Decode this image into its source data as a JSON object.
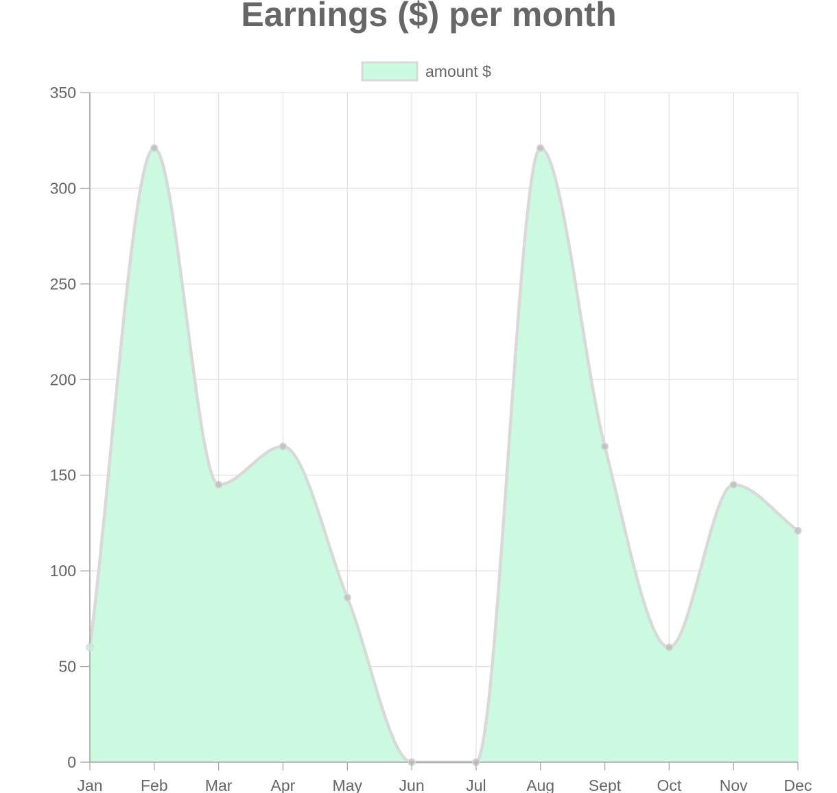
{
  "chart_data": {
    "type": "area",
    "title": "Earnings ($) per month",
    "xlabel": "",
    "ylabel": "",
    "categories": [
      "Jan",
      "Feb",
      "Mar",
      "Apr",
      "May",
      "Jun",
      "Jul",
      "Aug",
      "Sept",
      "Oct",
      "Nov",
      "Dec"
    ],
    "series": [
      {
        "name": "amount $",
        "values": [
          60,
          321,
          145,
          165,
          86,
          0,
          0,
          321,
          165,
          60,
          145,
          121
        ]
      }
    ],
    "ylim": [
      0,
      350
    ],
    "yticks": [
      0,
      50,
      100,
      150,
      200,
      250,
      300,
      350
    ],
    "grid": true,
    "legend_position": "top-center",
    "colors": {
      "fill": "#ccfae0",
      "line": "#d9d9d9",
      "point": "#bdbdbd",
      "text": "#666666",
      "grid": "#e2e2e2",
      "axis": "#a6a6a6"
    }
  }
}
